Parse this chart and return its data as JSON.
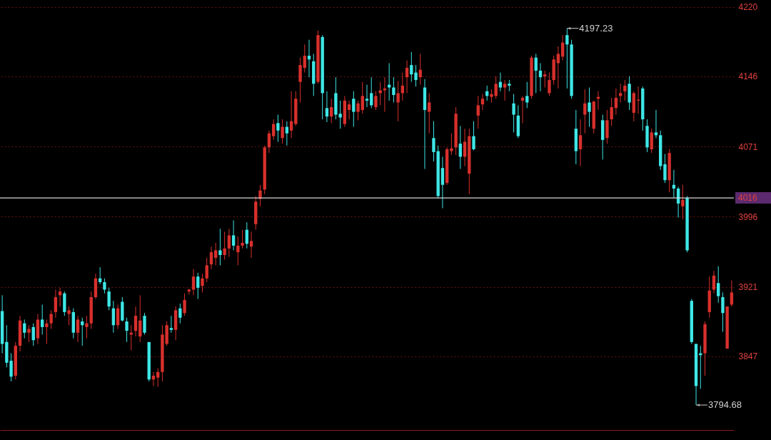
{
  "chart_data": {
    "type": "candlestick",
    "categories": [
      null,
      null,
      null,
      null,
      null,
      null,
      null,
      null,
      null,
      null,
      null,
      null,
      null,
      null,
      null,
      null,
      null,
      null,
      null,
      null,
      null,
      null,
      null,
      null,
      null,
      null,
      null,
      null,
      null,
      null,
      null,
      null,
      null,
      null,
      null,
      null,
      null,
      null,
      null,
      null,
      null,
      null,
      null,
      null,
      null,
      null,
      null,
      null,
      null,
      null,
      null,
      null,
      null,
      null,
      null,
      null,
      null,
      null,
      null,
      null,
      null,
      null,
      null,
      null,
      null,
      null,
      null,
      null,
      null,
      null,
      null,
      null,
      null,
      null,
      null,
      null,
      null,
      null,
      null,
      null,
      null,
      null,
      null,
      null,
      null,
      null,
      null,
      null,
      null,
      null,
      null,
      null,
      null,
      null,
      null,
      null,
      null,
      null,
      null,
      null,
      null,
      null,
      null,
      null,
      null,
      null,
      null,
      null,
      null,
      null,
      null,
      null,
      null,
      null,
      null,
      null,
      null,
      null,
      null,
      null,
      null,
      null,
      null,
      null,
      null,
      null,
      null,
      null,
      null,
      null,
      null,
      null,
      null,
      null,
      null,
      null,
      null,
      null,
      null,
      null,
      null,
      null,
      null,
      null,
      null,
      null,
      null,
      null,
      null,
      null,
      null,
      null,
      null,
      null,
      null,
      null,
      null,
      null,
      null,
      null,
      null,
      null,
      null,
      null,
      null
    ],
    "ohlc": [
      [
        3895,
        3912,
        3850,
        3860
      ],
      [
        3862,
        3880,
        3835,
        3840
      ],
      [
        3842,
        3850,
        3820,
        3825
      ],
      [
        3826,
        3862,
        3822,
        3858
      ],
      [
        3858,
        3890,
        3852,
        3885
      ],
      [
        3882,
        3886,
        3866,
        3872
      ],
      [
        3872,
        3880,
        3862,
        3876
      ],
      [
        3878,
        3882,
        3858,
        3864
      ],
      [
        3866,
        3892,
        3860,
        3886
      ],
      [
        3886,
        3902,
        3870,
        3878
      ],
      [
        3878,
        3886,
        3860,
        3882
      ],
      [
        3882,
        3896,
        3876,
        3892
      ],
      [
        3894,
        3918,
        3888,
        3910
      ],
      [
        3912,
        3920,
        3900,
        3916
      ],
      [
        3914,
        3916,
        3890,
        3894
      ],
      [
        3892,
        3900,
        3880,
        3896
      ],
      [
        3894,
        3898,
        3866,
        3872
      ],
      [
        3872,
        3890,
        3862,
        3886
      ],
      [
        3884,
        3888,
        3858,
        3880
      ],
      [
        3878,
        3890,
        3866,
        3882
      ],
      [
        3882,
        3916,
        3876,
        3910
      ],
      [
        3910,
        3935,
        3908,
        3930
      ],
      [
        3930,
        3942,
        3924,
        3926
      ],
      [
        3926,
        3930,
        3914,
        3918
      ],
      [
        3916,
        3920,
        3896,
        3900
      ],
      [
        3898,
        3906,
        3872,
        3880
      ],
      [
        3880,
        3902,
        3876,
        3898
      ],
      [
        3905,
        3910,
        3884,
        3885
      ],
      [
        3884,
        3888,
        3862,
        3874
      ],
      [
        3870,
        3880,
        3853,
        3872
      ],
      [
        3874,
        3900,
        3868,
        3890
      ],
      [
        3868,
        3912,
        3862,
        3885
      ],
      [
        3890,
        3893,
        3870,
        3872
      ],
      [
        3862,
        3862,
        3820,
        3822
      ],
      [
        3822,
        3830,
        3815,
        3826
      ],
      [
        3824,
        3834,
        3814,
        3830
      ],
      [
        3830,
        3880,
        3820,
        3870
      ],
      [
        3860,
        3884,
        3858,
        3880
      ],
      [
        3877,
        3890,
        3872,
        3875
      ],
      [
        3875,
        3900,
        3864,
        3896
      ],
      [
        3898,
        3903,
        3882,
        3888
      ],
      [
        3893,
        3914,
        3890,
        3907
      ],
      [
        3916,
        3919,
        3913,
        3918
      ],
      [
        3918,
        3940,
        3912,
        3932
      ],
      [
        3932,
        3936,
        3908,
        3920
      ],
      [
        3922,
        3935,
        3915,
        3930
      ],
      [
        3930,
        3952,
        3926,
        3944
      ],
      [
        3945,
        3964,
        3940,
        3958
      ],
      [
        3952,
        3968,
        3944,
        3960
      ],
      [
        3960,
        3983,
        3944,
        3955
      ],
      [
        3955,
        3980,
        3950,
        3962
      ],
      [
        3962,
        3983,
        3953,
        3976
      ],
      [
        3976,
        3992,
        3960,
        3965
      ],
      [
        3958,
        3975,
        3944,
        3965
      ],
      [
        3965,
        3982,
        3962,
        3968
      ],
      [
        3982,
        3990,
        3962,
        3967
      ],
      [
        3964,
        3980,
        3952,
        3970
      ],
      [
        3988,
        4018,
        3982,
        4012
      ],
      [
        4015,
        4030,
        4007,
        4024
      ],
      [
        4025,
        4072,
        4020,
        4070
      ],
      [
        4070,
        4088,
        4064,
        4085
      ],
      [
        4082,
        4100,
        4078,
        4095
      ],
      [
        4096,
        4105,
        4076,
        4088
      ],
      [
        4080,
        4100,
        4074,
        4092
      ],
      [
        4092,
        4098,
        4072,
        4085
      ],
      [
        4088,
        4130,
        4080,
        4098
      ],
      [
        4095,
        4130,
        4093,
        4122
      ],
      [
        4140,
        4166,
        4118,
        4158
      ],
      [
        4155,
        4180,
        4150,
        4168
      ],
      [
        4168,
        4185,
        4145,
        4164
      ],
      [
        4162,
        4170,
        4125,
        4138
      ],
      [
        4140,
        4195,
        4138,
        4190
      ],
      [
        4188,
        4190,
        4100,
        4128
      ],
      [
        4112,
        4130,
        4097,
        4103
      ],
      [
        4103,
        4122,
        4096,
        4113
      ],
      [
        4128,
        4145,
        4100,
        4105
      ],
      [
        4106,
        4120,
        4090,
        4102
      ],
      [
        4095,
        4125,
        4092,
        4120
      ],
      [
        4110,
        4120,
        4100,
        4116
      ],
      [
        4122,
        4130,
        4092,
        4108
      ],
      [
        4108,
        4120,
        4099,
        4117
      ],
      [
        4110,
        4140,
        4106,
        4125
      ],
      [
        4122,
        4137,
        4113,
        4120
      ],
      [
        4128,
        4145,
        4112,
        4115
      ],
      [
        4113,
        4130,
        4110,
        4125
      ],
      [
        4128,
        4140,
        4115,
        4131
      ],
      [
        4131,
        4145,
        4108,
        4133
      ],
      [
        4137,
        4160,
        4120,
        4134
      ],
      [
        4134,
        4145,
        4118,
        4126
      ],
      [
        4118,
        4141,
        4098,
        4128
      ],
      [
        4128,
        4150,
        4120,
        4136
      ],
      [
        4145,
        4163,
        4128,
        4155
      ],
      [
        4158,
        4172,
        4140,
        4148
      ],
      [
        4150,
        4158,
        4135,
        4142
      ],
      [
        4145,
        4170,
        4137,
        4153
      ],
      [
        4134,
        4143,
        4047,
        4110
      ],
      [
        4108,
        4128,
        4085,
        4118
      ],
      [
        4080,
        4098,
        4055,
        4065
      ],
      [
        4066,
        4072,
        4016,
        4018
      ],
      [
        4048,
        4060,
        4005,
        4030
      ],
      [
        4032,
        4070,
        4030,
        4068
      ],
      [
        4066,
        4085,
        4062,
        4069
      ],
      [
        4070,
        4113,
        4062,
        4106
      ],
      [
        4074,
        4093,
        4047,
        4060
      ],
      [
        4060,
        4090,
        4050,
        4076
      ],
      [
        4042,
        4090,
        4020,
        4082
      ],
      [
        4082,
        4098,
        4067,
        4068
      ],
      [
        4104,
        4125,
        4090,
        4115
      ],
      [
        4116,
        4127,
        4110,
        4122
      ],
      [
        4130,
        4136,
        4120,
        4125
      ],
      [
        4124,
        4132,
        4118,
        4127
      ],
      [
        4125,
        4146,
        4122,
        4138
      ],
      [
        4140,
        4150,
        4130,
        4134
      ],
      [
        4134,
        4142,
        4120,
        4138
      ],
      [
        4138,
        4142,
        4130,
        4136
      ],
      [
        4117,
        4127,
        4086,
        4105
      ],
      [
        4104,
        4115,
        4080,
        4082
      ],
      [
        4120,
        4125,
        4096,
        4123
      ],
      [
        4125,
        4140,
        4112,
        4118
      ],
      [
        4125,
        4168,
        4122,
        4166
      ],
      [
        4166,
        4170,
        4128,
        4152
      ],
      [
        4152,
        4160,
        4130,
        4145
      ],
      [
        4146,
        4152,
        4134,
        4148
      ],
      [
        4128,
        4150,
        4125,
        4142
      ],
      [
        4142,
        4168,
        4137,
        4164
      ],
      [
        4160,
        4178,
        4133,
        4170
      ],
      [
        4167,
        4190,
        4163,
        4182
      ],
      [
        4190,
        4197.23,
        4133,
        4180
      ],
      [
        4180,
        4185,
        4122,
        4125
      ],
      [
        4090,
        4110,
        4052,
        4066
      ],
      [
        4068,
        4100,
        4050,
        4083
      ],
      [
        4105,
        4132,
        4085,
        4117
      ],
      [
        4118,
        4134,
        4092,
        4108
      ],
      [
        4090,
        4120,
        4085,
        4119
      ],
      [
        4122,
        4130,
        4110,
        4124
      ],
      [
        4099,
        4105,
        4057,
        4078
      ],
      [
        4080,
        4110,
        4074,
        4099
      ],
      [
        4100,
        4123,
        4093,
        4113
      ],
      [
        4112,
        4133,
        4105,
        4123
      ],
      [
        4125,
        4138,
        4118,
        4128
      ],
      [
        4130,
        4142,
        4120,
        4136
      ],
      [
        4138,
        4146,
        4110,
        4118
      ],
      [
        4107,
        4130,
        4098,
        4128
      ],
      [
        4120,
        4135,
        4106,
        4121
      ],
      [
        4133,
        4135,
        4088,
        4100
      ],
      [
        4093,
        4100,
        4065,
        4070
      ],
      [
        4068,
        4090,
        4064,
        4086
      ],
      [
        4086,
        4110,
        4080,
        4083
      ],
      [
        4083,
        4088,
        4046,
        4050
      ],
      [
        4052,
        4063,
        4032,
        4035
      ],
      [
        4035,
        4068,
        4022,
        4064
      ],
      [
        4030,
        4046,
        4016,
        4026
      ],
      [
        4026,
        4028,
        3995,
        4010
      ],
      [
        4007,
        4030,
        3993,
        4014
      ],
      [
        4016,
        4018,
        3958,
        3960
      ],
      [
        3906,
        3908,
        3860,
        3862
      ],
      [
        3860,
        3860,
        3794.68,
        3815
      ],
      [
        3850,
        3858,
        3812,
        3848
      ],
      [
        3850,
        3884,
        3826,
        3881
      ],
      [
        3894,
        3932,
        3888,
        3917
      ],
      [
        3918,
        3938,
        3914,
        3933
      ],
      [
        3925,
        3943,
        3904,
        3911
      ],
      [
        3910,
        3915,
        3873,
        3893
      ],
      [
        3855,
        3900,
        3855,
        3900
      ],
      [
        3902,
        3928,
        3900,
        3915
      ]
    ],
    "colors": [
      "#3ee6e6",
      "#3ee6e6",
      "#3ee6e6",
      "#d8302c",
      "#d8302c",
      "#3ee6e6",
      "#d8302c",
      "#3ee6e6",
      "#d8302c",
      "#3ee6e6",
      "#d8302c",
      "#d8302c",
      "#d8302c",
      "#d8302c",
      "#3ee6e6",
      "#d8302c",
      "#3ee6e6",
      "#d8302c",
      "#3ee6e6",
      "#d8302c",
      "#d8302c",
      "#d8302c",
      "#3ee6e6",
      "#3ee6e6",
      "#3ee6e6",
      "#3ee6e6",
      "#d8302c",
      "#3ee6e6",
      "#3ee6e6",
      "#d8302c",
      "#d8302c",
      "#d8302c",
      "#3ee6e6",
      "#3ee6e6",
      "#d8302c",
      "#d8302c",
      "#d8302c",
      "#d8302c",
      "#3ee6e6",
      "#d8302c",
      "#3ee6e6",
      "#d8302c",
      "#d8302c",
      "#d8302c",
      "#3ee6e6",
      "#d8302c",
      "#d8302c",
      "#d8302c",
      "#d8302c",
      "#3ee6e6",
      "#d8302c",
      "#d8302c",
      "#3ee6e6",
      "#d8302c",
      "#d8302c",
      "#3ee6e6",
      "#d8302c",
      "#d8302c",
      "#d8302c",
      "#d8302c",
      "#d8302c",
      "#d8302c",
      "#3ee6e6",
      "#d8302c",
      "#3ee6e6",
      "#d8302c",
      "#d8302c",
      "#d8302c",
      "#d8302c",
      "#3ee6e6",
      "#3ee6e6",
      "#d8302c",
      "#3ee6e6",
      "#3ee6e6",
      "#d8302c",
      "#3ee6e6",
      "#3ee6e6",
      "#d8302c",
      "#d8302c",
      "#3ee6e6",
      "#d8302c",
      "#d8302c",
      "#3ee6e6",
      "#3ee6e6",
      "#d8302c",
      "#d8302c",
      "#d8302c",
      "#3ee6e6",
      "#3ee6e6",
      "#d8302c",
      "#d8302c",
      "#d8302c",
      "#3ee6e6",
      "#3ee6e6",
      "#d8302c",
      "#3ee6e6",
      "#d8302c",
      "#3ee6e6",
      "#3ee6e6",
      "#3ee6e6",
      "#d8302c",
      "#d8302c",
      "#d8302c",
      "#3ee6e6",
      "#d8302c",
      "#d8302c",
      "#3ee6e6",
      "#d8302c",
      "#d8302c",
      "#3ee6e6",
      "#d8302c",
      "#d8302c",
      "#3ee6e6",
      "#d8302c",
      "#3ee6e6",
      "#3ee6e6",
      "#3ee6e6",
      "#d8302c",
      "#3ee6e6",
      "#d8302c",
      "#3ee6e6",
      "#3ee6e6",
      "#d8302c",
      "#d8302c",
      "#d8302c",
      "#d8302c",
      "#d8302c",
      "#3ee6e6",
      "#3ee6e6",
      "#3ee6e6",
      "#d8302c",
      "#d8302c",
      "#3ee6e6",
      "#d8302c",
      "#d8302c",
      "#3ee6e6",
      "#d8302c",
      "#d8302c",
      "#d8302c",
      "#d8302c",
      "#d8302c",
      "#3ee6e6",
      "#d8302c",
      "#d8302c",
      "#3ee6e6",
      "#3ee6e6",
      "#d8302c",
      "#3ee6e6",
      "#3ee6e6",
      "#3ee6e6",
      "#d8302c",
      "#3ee6e6",
      "#3ee6e6",
      "#d8302c",
      "#3ee6e6",
      "#3ee6e6",
      "#3ee6e6",
      "#3ee6e6",
      "#d8302c",
      "#d8302c",
      "#d8302c",
      "#3ee6e6",
      "#3ee6e6",
      "#d8302c",
      "#d8302c"
    ],
    "ylim": [
      3768,
      4226
    ],
    "yticks": [
      3847,
      3921,
      3996,
      4071,
      4146,
      4220
    ],
    "grid": "y",
    "ref_lines": [
      {
        "axis": "y",
        "value": 4016,
        "label": "4016",
        "color": "#d8d8d8"
      }
    ],
    "annotations": [
      "4197.23",
      "3794.68"
    ]
  }
}
